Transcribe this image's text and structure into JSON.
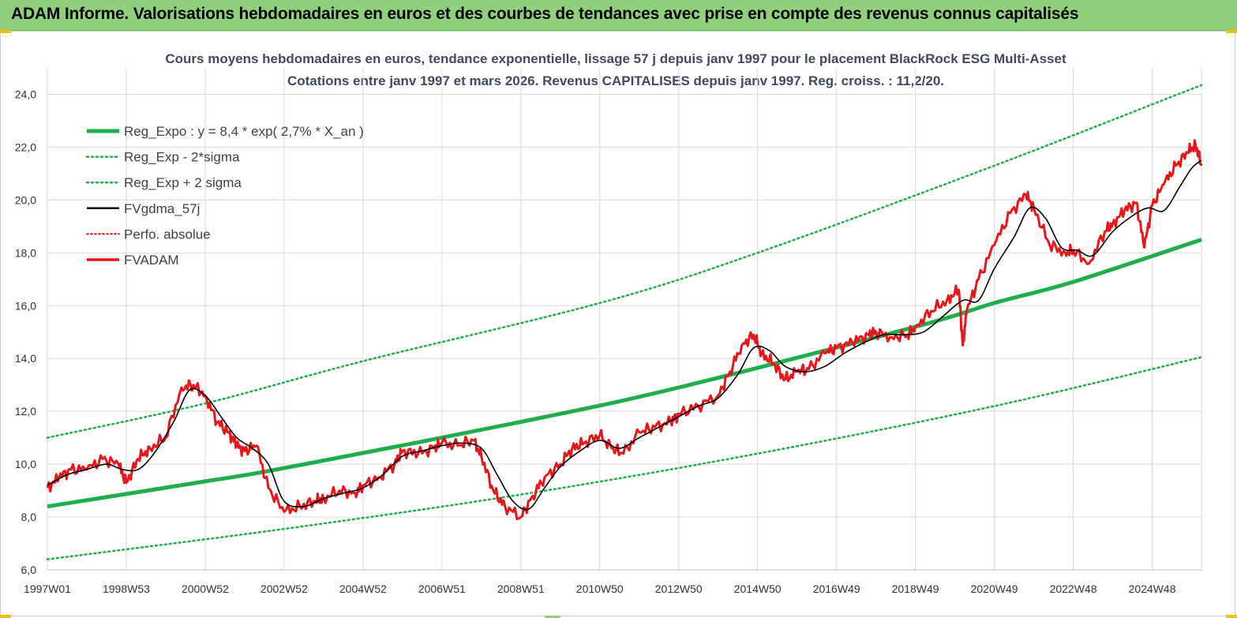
{
  "header": {
    "title": "ADAM Informe. Valorisations hebdomadaires en euros et des courbes de tendances avec prise en compte des revenus connus capitalisés"
  },
  "colors": {
    "header_bg": "#8ed17a",
    "trend": "#1fae4b",
    "band": "#1fae4b",
    "gdma": "#000000",
    "fvadam": "#e8161b",
    "perfo": "#c00000",
    "grid": "#d9d9d9"
  },
  "chart_data": {
    "type": "line",
    "title": "Cours moyens hebdomadaires en euros, tendance exponentielle, lissage 57 j depuis janv 1997 pour le placement BlackRock ESG Multi-Asset",
    "subtitle": "Cotations entre janv 1997 et mars 2026. Revenus CAPITALISES depuis janv 1997. Reg. croiss. : 11,2/20.",
    "xlabel": "",
    "ylabel": "",
    "ylim": [
      6,
      25
    ],
    "yticks": [
      "6,0",
      "8,0",
      "10,0",
      "12,0",
      "14,0",
      "16,0",
      "18,0",
      "20,0",
      "22,0",
      "24,0"
    ],
    "yticks_values": [
      6,
      8,
      10,
      12,
      14,
      16,
      18,
      20,
      22,
      24
    ],
    "x_range_years": [
      1997.0,
      2026.25
    ],
    "xticks": [
      "1997W01",
      "1998W53",
      "2000W52",
      "2002W52",
      "2004W52",
      "2006W51",
      "2008W51",
      "2010W50",
      "2012W50",
      "2014W50",
      "2016W49",
      "2018W49",
      "2020W49",
      "2022W48",
      "2024W48"
    ],
    "xticks_years": [
      1997.0,
      1999.0,
      2001.0,
      2003.0,
      2005.0,
      2007.0,
      2009.0,
      2011.0,
      2013.0,
      2015.0,
      2017.0,
      2019.0,
      2021.0,
      2023.0,
      2025.0
    ],
    "grid": true,
    "legend_position": "top-left",
    "legend": [
      {
        "label": "Reg_Expo : y = 8,4 * exp( 2,7% *  X_an )",
        "style": "thick-green"
      },
      {
        "label": "Reg_Exp - 2*sigma",
        "style": "dotted-green"
      },
      {
        "label": "Reg_Exp + 2 sigma",
        "style": "dotted-green"
      },
      {
        "label": "FVgdma_57j",
        "style": "solid-black"
      },
      {
        "label": "Perfo. absolue",
        "style": "dotted-red"
      },
      {
        "label": "FVADAM",
        "style": "solid-red"
      }
    ],
    "series": [
      {
        "name": "Reg_Expo : y = 8,4 * exp( 2,7% *  X_an )",
        "x": [
          1997.0,
          2001.0,
          2003.0,
          2009.0,
          2013.0,
          2019.0,
          2021.0,
          2023.0,
          2026.25
        ],
        "y": [
          8.4,
          9.35,
          9.85,
          11.6,
          12.9,
          15.2,
          16.1,
          16.9,
          18.5
        ]
      },
      {
        "name": "Reg_Exp - 2*sigma",
        "x": [
          1997.0,
          2003.0,
          2009.0,
          2015.0,
          2021.0,
          2026.25
        ],
        "y": [
          6.4,
          7.55,
          8.85,
          10.4,
          12.2,
          14.05
        ]
      },
      {
        "name": "Reg_Exp + 2 sigma",
        "x": [
          1997.0,
          2001.0,
          2005.0,
          2011.0,
          2015.0,
          2021.0,
          2026.25
        ],
        "y": [
          11.0,
          12.3,
          13.9,
          16.1,
          18.0,
          21.3,
          24.35
        ]
      },
      {
        "name": "FVADAM",
        "x": [
          1997.0,
          1997.3,
          1997.6,
          1998.0,
          1998.4,
          1998.8,
          1999.0,
          1999.3,
          1999.6,
          2000.0,
          2000.4,
          2000.7,
          2001.0,
          2001.3,
          2001.6,
          2001.8,
          2002.0,
          2002.3,
          2002.6,
          2003.0,
          2003.4,
          2003.8,
          2004.0,
          2004.4,
          2004.8,
          2005.0,
          2005.4,
          2005.8,
          2006.0,
          2006.4,
          2006.8,
          2007.0,
          2007.4,
          2007.8,
          2008.0,
          2008.3,
          2008.6,
          2009.0,
          2009.3,
          2009.6,
          2010.0,
          2010.3,
          2010.6,
          2011.0,
          2011.3,
          2011.6,
          2012.0,
          2012.4,
          2012.8,
          2013.0,
          2013.5,
          2014.0,
          2014.3,
          2014.6,
          2014.9,
          2015.1,
          2015.4,
          2015.7,
          2016.0,
          2016.3,
          2016.7,
          2017.0,
          2017.4,
          2017.8,
          2018.0,
          2018.4,
          2018.8,
          2019.0,
          2019.4,
          2019.8,
          2020.1,
          2020.2,
          2020.3,
          2020.6,
          2021.0,
          2021.4,
          2021.8,
          2022.0,
          2022.4,
          2022.8,
          2023.0,
          2023.4,
          2023.8,
          2024.0,
          2024.3,
          2024.6,
          2024.8,
          2025.0,
          2025.3,
          2025.6,
          2025.9,
          2026.1,
          2026.25
        ],
        "y": [
          9.1,
          9.5,
          9.8,
          9.8,
          10.2,
          10.0,
          9.3,
          10.2,
          10.6,
          11.0,
          12.9,
          13.0,
          12.6,
          11.6,
          11.2,
          10.7,
          10.5,
          10.7,
          9.1,
          8.2,
          8.4,
          8.6,
          8.7,
          9.0,
          8.9,
          9.2,
          9.5,
          10.0,
          10.5,
          10.4,
          10.6,
          10.8,
          10.7,
          10.9,
          10.3,
          9.0,
          8.4,
          8.0,
          8.8,
          9.5,
          10.0,
          10.6,
          10.8,
          11.1,
          10.6,
          10.4,
          11.2,
          11.4,
          11.6,
          11.9,
          12.2,
          12.6,
          13.5,
          14.5,
          14.9,
          14.2,
          13.8,
          13.2,
          13.5,
          13.6,
          14.2,
          14.4,
          14.6,
          14.9,
          15.0,
          14.8,
          14.9,
          15.2,
          15.8,
          16.2,
          16.6,
          14.5,
          15.8,
          17.0,
          18.3,
          19.5,
          20.2,
          19.7,
          18.3,
          18.0,
          18.1,
          17.6,
          18.8,
          19.1,
          19.6,
          19.9,
          18.2,
          19.8,
          20.6,
          21.3,
          21.8,
          22.1,
          21.3
        ]
      },
      {
        "name": "FVgdma_57j",
        "x": [
          1997.0,
          1997.5,
          1998.0,
          1998.5,
          1998.9,
          1999.3,
          1999.7,
          2000.2,
          2000.6,
          2001.0,
          2001.4,
          2001.8,
          2002.2,
          2002.6,
          2003.0,
          2003.5,
          2004.0,
          2004.5,
          2005.0,
          2005.5,
          2006.0,
          2006.5,
          2007.0,
          2007.5,
          2008.0,
          2008.4,
          2008.8,
          2009.2,
          2009.6,
          2010.0,
          2010.5,
          2011.0,
          2011.5,
          2012.0,
          2012.5,
          2013.0,
          2013.5,
          2014.0,
          2014.5,
          2014.9,
          2015.3,
          2015.7,
          2016.2,
          2016.7,
          2017.2,
          2017.7,
          2018.2,
          2018.7,
          2019.2,
          2019.7,
          2020.2,
          2020.6,
          2021.0,
          2021.5,
          2021.9,
          2022.3,
          2022.7,
          2023.1,
          2023.5,
          2024.0,
          2024.5,
          2024.9,
          2025.3,
          2025.7,
          2026.0,
          2026.25
        ],
        "y": [
          9.2,
          9.6,
          9.8,
          10.0,
          9.8,
          9.8,
          10.4,
          11.6,
          12.8,
          12.6,
          11.8,
          11.0,
          10.6,
          10.0,
          8.6,
          8.4,
          8.7,
          8.9,
          9.1,
          9.6,
          10.3,
          10.5,
          10.7,
          10.8,
          10.6,
          9.6,
          8.6,
          8.3,
          9.1,
          9.9,
          10.5,
          10.9,
          10.6,
          11.0,
          11.4,
          11.8,
          12.2,
          12.5,
          13.4,
          14.4,
          14.3,
          13.7,
          13.5,
          13.7,
          14.2,
          14.6,
          14.9,
          14.9,
          15.0,
          15.6,
          16.2,
          16.2,
          17.4,
          18.6,
          19.7,
          19.3,
          18.2,
          18.1,
          17.9,
          18.8,
          19.4,
          19.7,
          19.6,
          20.5,
          21.2,
          21.5
        ]
      }
    ]
  }
}
